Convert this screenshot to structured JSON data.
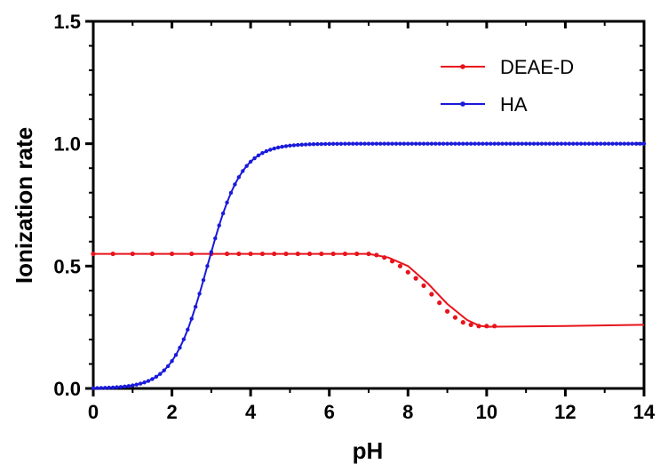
{
  "chart_data": {
    "type": "line",
    "xlabel": "pH",
    "ylabel": "Ionization rate",
    "xlim": [
      0,
      14
    ],
    "ylim": [
      0,
      1.5
    ],
    "x_ticks": [
      "0",
      "2",
      "4",
      "6",
      "8",
      "10",
      "12",
      "14"
    ],
    "y_ticks": [
      "0.0",
      "0.5",
      "1.0",
      "1.5"
    ],
    "grid": false,
    "legend_position": "top-right",
    "series": [
      {
        "name": "DEAE-D",
        "color": "#e8141c",
        "markers": [
          [
            0.0,
            0.55
          ],
          [
            0.5,
            0.55
          ],
          [
            1.0,
            0.55
          ],
          [
            1.5,
            0.55
          ],
          [
            2.0,
            0.55
          ],
          [
            2.5,
            0.55
          ],
          [
            3.0,
            0.55
          ],
          [
            3.4,
            0.55
          ],
          [
            3.7,
            0.55
          ],
          [
            4.0,
            0.55
          ],
          [
            4.3,
            0.55
          ],
          [
            4.6,
            0.55
          ],
          [
            4.9,
            0.55
          ],
          [
            5.2,
            0.55
          ],
          [
            5.5,
            0.55
          ],
          [
            5.8,
            0.55
          ],
          [
            6.1,
            0.55
          ],
          [
            6.4,
            0.55
          ],
          [
            6.7,
            0.55
          ],
          [
            7.0,
            0.55
          ],
          [
            7.2,
            0.545
          ],
          [
            7.4,
            0.535
          ],
          [
            7.6,
            0.52
          ],
          [
            7.8,
            0.5
          ],
          [
            8.0,
            0.475
          ],
          [
            8.2,
            0.45
          ],
          [
            8.4,
            0.42
          ],
          [
            8.6,
            0.385
          ],
          [
            8.8,
            0.35
          ],
          [
            9.0,
            0.315
          ],
          [
            9.2,
            0.29
          ],
          [
            9.4,
            0.27
          ],
          [
            9.6,
            0.26
          ],
          [
            9.8,
            0.255
          ],
          [
            10.0,
            0.255
          ],
          [
            10.2,
            0.255
          ]
        ],
        "curve": [
          [
            0,
            0.55
          ],
          [
            7.0,
            0.55
          ],
          [
            7.5,
            0.535
          ],
          [
            8.0,
            0.5
          ],
          [
            8.5,
            0.43
          ],
          [
            9.0,
            0.345
          ],
          [
            9.5,
            0.28
          ],
          [
            9.8,
            0.257
          ],
          [
            10.0,
            0.252
          ],
          [
            12.0,
            0.255
          ],
          [
            14.0,
            0.26
          ]
        ]
      },
      {
        "name": "HA",
        "color": "#1a1adc",
        "pKa": 2.9,
        "markers_x": {
          "start": 0,
          "end": 14,
          "step": 0.1
        }
      }
    ]
  }
}
